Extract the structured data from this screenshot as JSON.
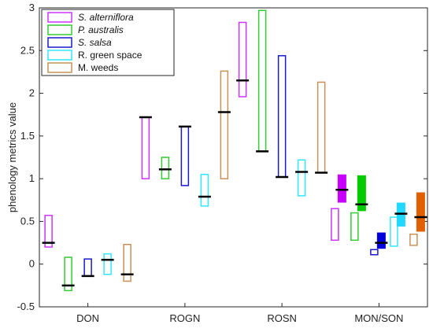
{
  "chart_data": {
    "type": "box",
    "ylabel": "phenology metrics value",
    "ylim": [
      -0.5,
      3
    ],
    "yticks": [
      "-0.5",
      "0",
      "0.5",
      "1",
      "1.5",
      "2",
      "2.5",
      "3"
    ],
    "categories": [
      "DON",
      "ROGN",
      "ROSN",
      "MON/SON"
    ],
    "legend_position": "top-left",
    "series": [
      {
        "name": "S. alterniflora",
        "italic": true,
        "color": "#cc33ff"
      },
      {
        "name": "P. australis",
        "italic": true,
        "color": "#33cc33"
      },
      {
        "name": "S. salsa",
        "italic": true,
        "color": "#1a1acc"
      },
      {
        "name": "R. green space",
        "italic": false,
        "color": "#33e6ff"
      },
      {
        "name": "M. weeds",
        "italic": false,
        "color": "#c8915a"
      }
    ],
    "boxes": {
      "DON": [
        {
          "low": 0.2,
          "high": 0.57,
          "median": 0.25
        },
        {
          "low": -0.31,
          "high": 0.08,
          "median": -0.25
        },
        {
          "low": -0.14,
          "high": 0.06,
          "median": -0.14
        },
        {
          "low": -0.12,
          "high": 0.12,
          "median": 0.05
        },
        {
          "low": -0.2,
          "high": 0.23,
          "median": -0.12
        }
      ],
      "ROGN": [
        {
          "low": 1.0,
          "high": 1.72,
          "median": 1.72
        },
        {
          "low": 1.0,
          "high": 1.25,
          "median": 1.11
        },
        {
          "low": 0.92,
          "high": 1.61,
          "median": 1.61
        },
        {
          "low": 0.68,
          "high": 1.05,
          "median": 0.79
        },
        {
          "low": 1.0,
          "high": 2.26,
          "median": 1.78
        }
      ],
      "ROSN": [
        {
          "low": 1.96,
          "high": 2.83,
          "median": 2.15
        },
        {
          "low": 1.32,
          "high": 2.97,
          "median": 1.32
        },
        {
          "low": 1.02,
          "high": 2.44,
          "median": 1.02
        },
        {
          "low": 0.8,
          "high": 1.22,
          "median": 1.08
        },
        {
          "low": 1.07,
          "high": 2.13,
          "median": 1.07
        }
      ],
      "MON/SON": {
        "open": [
          {
            "low": 0.28,
            "high": 0.65
          },
          {
            "low": 0.28,
            "high": 0.6
          },
          {
            "low": 0.11,
            "high": 0.17
          },
          {
            "low": 0.21,
            "high": 0.55
          },
          {
            "low": 0.22,
            "high": 0.35
          }
        ],
        "filled": [
          {
            "low": 0.72,
            "high": 1.05,
            "median": 0.87
          },
          {
            "low": 0.62,
            "high": 1.04,
            "median": 0.7
          },
          {
            "low": 0.18,
            "high": 0.37,
            "median": 0.25
          },
          {
            "low": 0.44,
            "high": 0.72,
            "median": 0.59
          },
          {
            "low": 0.38,
            "high": 0.84,
            "median": 0.55
          }
        ]
      }
    },
    "filled_colors": [
      "#c800ff",
      "#00cc00",
      "#0000dd",
      "#22d8ff",
      "#e06000"
    ]
  }
}
